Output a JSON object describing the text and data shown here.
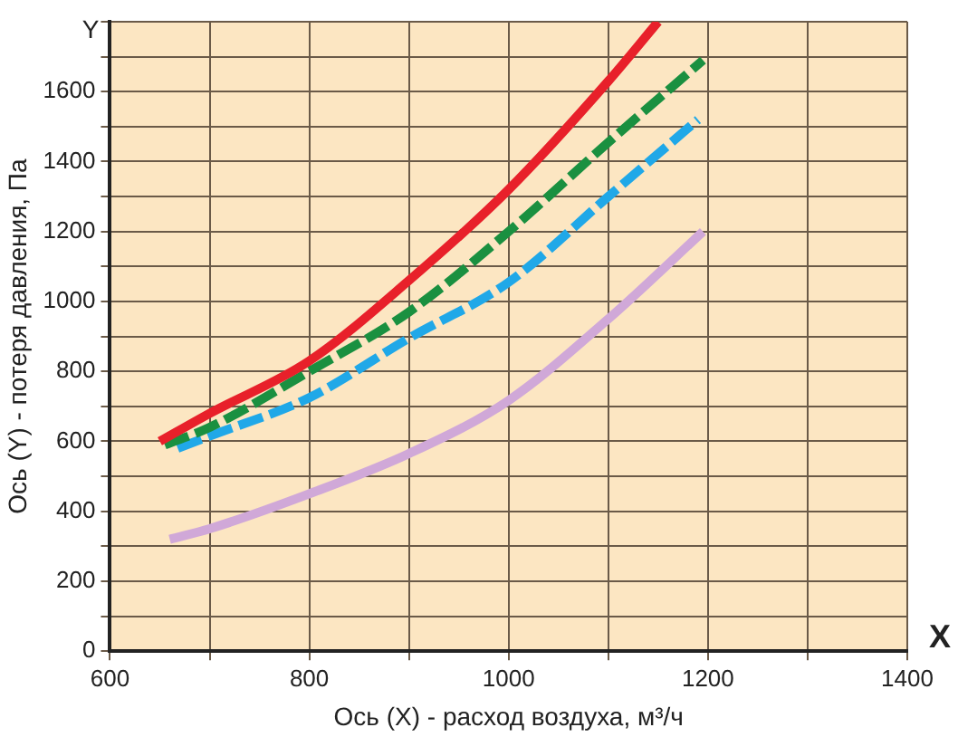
{
  "chart_data": {
    "type": "line",
    "xlabel": "Ось (X) - расход воздуха, м³/ч",
    "ylabel": "Ось (Y) - потеря давления, Па",
    "annotations": [
      "Y",
      "X"
    ],
    "xlim": [
      600,
      1400
    ],
    "xticks": [
      600,
      {
        "value": 700,
        "label": null
      },
      800,
      {
        "value": 900,
        "label": null
      },
      1000,
      {
        "value": 1100,
        "label": null
      },
      1200,
      {
        "value": 1300,
        "label": null
      },
      1400
    ],
    "ylim": [
      0,
      1800
    ],
    "yticks": [
      0,
      {
        "value": 100,
        "label": null
      },
      200,
      {
        "value": 300,
        "label": null
      },
      400,
      {
        "value": 500,
        "label": null
      },
      600,
      {
        "value": 700,
        "label": null
      },
      800,
      {
        "value": 900,
        "label": null
      },
      1000,
      {
        "value": 1100,
        "label": null
      },
      1200,
      {
        "value": 1300,
        "label": null
      },
      1400,
      {
        "value": 1500,
        "label": null
      },
      1600,
      {
        "value": 1700,
        "label": null
      },
      {
        "value": 1800,
        "label": null
      }
    ],
    "grid": true,
    "legend": false,
    "marker": "none",
    "series": [
      {
        "color": "#e8202a",
        "line_style": "solid",
        "x": [
          650,
          700,
          800,
          900,
          1000,
          1100,
          1150
        ],
        "values": [
          600,
          680,
          830,
          1060,
          1320,
          1630,
          1800
        ]
      },
      {
        "color": "#1a9040",
        "line_style": "dashed",
        "x": [
          655,
          700,
          800,
          900,
          1000,
          1100,
          1195
        ],
        "values": [
          590,
          640,
          800,
          970,
          1200,
          1455,
          1690
        ]
      },
      {
        "color": "#20a8e8",
        "line_style": "dashed",
        "x": [
          668,
          700,
          800,
          900,
          1000,
          1100,
          1190
        ],
        "values": [
          580,
          615,
          725,
          895,
          1055,
          1300,
          1520
        ]
      },
      {
        "color": "#d0a8d8",
        "line_style": "solid",
        "x": [
          660,
          700,
          800,
          900,
          1000,
          1100,
          1195
        ],
        "values": [
          320,
          350,
          450,
          565,
          717,
          950,
          1200
        ]
      }
    ]
  }
}
